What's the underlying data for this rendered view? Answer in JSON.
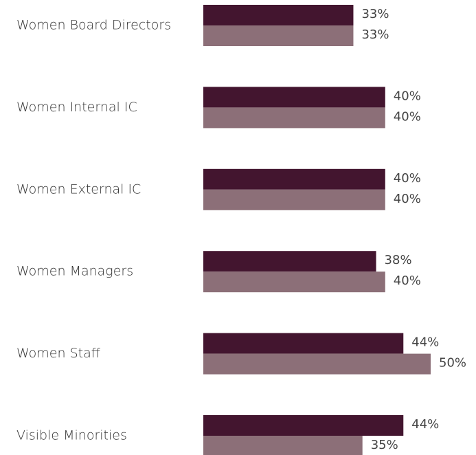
{
  "chart_data": {
    "type": "barh",
    "categories": [
      "Women Board Directors",
      "Women Internal IC",
      "Women External IC",
      "Women Managers",
      "Women Staff",
      "Visible Minorities"
    ],
    "series": [
      {
        "color": "#43152f",
        "values": [
          33,
          40,
          40,
          38,
          44,
          44
        ],
        "value_labels": [
          "33%",
          "40%",
          "40%",
          "38%",
          "44%",
          "44%"
        ]
      },
      {
        "color": "#8c6f78",
        "values": [
          33,
          40,
          40,
          40,
          50,
          35
        ],
        "value_labels": [
          "33%",
          "40%",
          "40%",
          "40%",
          "50%",
          "35%"
        ]
      }
    ]
  }
}
